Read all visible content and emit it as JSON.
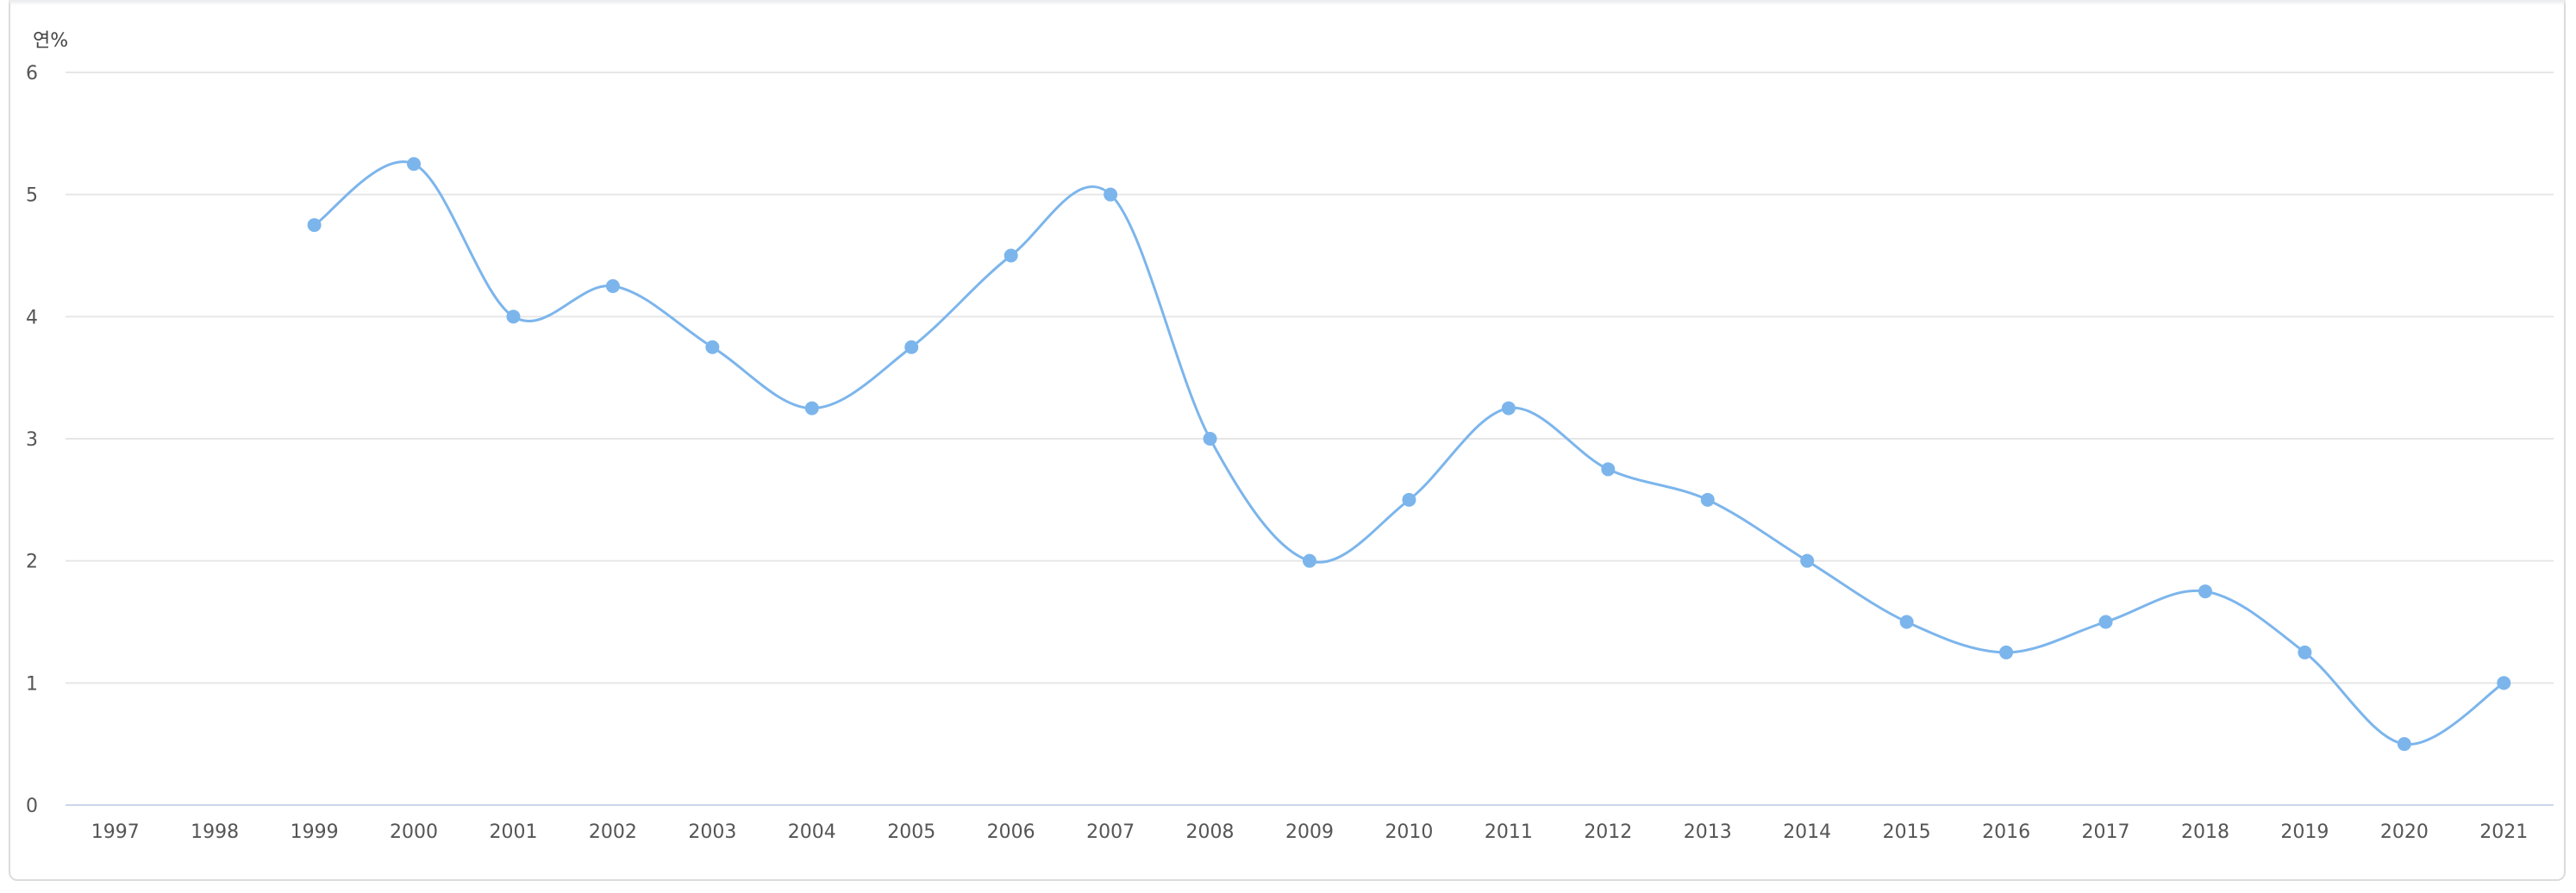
{
  "chart_data": {
    "type": "line",
    "title": "",
    "xlabel": "",
    "ylabel": "",
    "y_unit_label": "연%",
    "x": [
      "1997",
      "1998",
      "1999",
      "2000",
      "2001",
      "2002",
      "2003",
      "2004",
      "2005",
      "2006",
      "2007",
      "2008",
      "2009",
      "2010",
      "2011",
      "2012",
      "2013",
      "2014",
      "2015",
      "2016",
      "2017",
      "2018",
      "2019",
      "2020",
      "2021"
    ],
    "series": [
      {
        "values": [
          null,
          null,
          4.75,
          5.25,
          4.0,
          4.25,
          3.75,
          3.25,
          3.75,
          4.5,
          5.0,
          3.0,
          2.0,
          2.5,
          3.25,
          2.75,
          2.5,
          2.0,
          1.5,
          1.25,
          1.5,
          1.75,
          1.25,
          0.5,
          1.0
        ]
      }
    ],
    "ylim": [
      0,
      6
    ],
    "yticks": [
      "0",
      "1",
      "2",
      "3",
      "4",
      "5",
      "6"
    ],
    "grid": true,
    "line_color": "#7cb5ec",
    "smooth": true
  }
}
